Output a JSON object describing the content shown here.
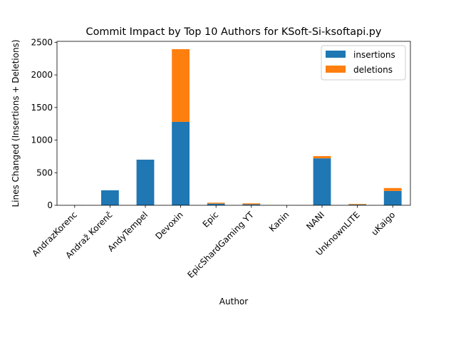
{
  "chart_data": {
    "type": "bar",
    "stacked": true,
    "title": "Commit Impact by Top 10 Authors for KSoft-Si-ksoftapi.py",
    "xlabel": "Author",
    "ylabel": "Lines Changed (Insertions + Deletions)",
    "categories": [
      "AndrazKorenc",
      "Andraž Korenč",
      "AndyTempel",
      "Devoxin",
      "Epic",
      "EpicShardGaming YT",
      "Kanin",
      "NANI",
      "UnknownLITE",
      "uKaigo"
    ],
    "series": [
      {
        "name": "insertions",
        "color": "#1f77b4",
        "values": [
          2,
          230,
          700,
          1280,
          25,
          15,
          0,
          720,
          10,
          220
        ]
      },
      {
        "name": "deletions",
        "color": "#ff7f0e",
        "values": [
          0,
          0,
          0,
          1115,
          15,
          15,
          0,
          35,
          10,
          45
        ]
      }
    ],
    "ylim": [
      0,
      2515
    ],
    "yticks": [
      0,
      500,
      1000,
      1500,
      2000,
      2500
    ],
    "legend": "top-right",
    "grid": false
  }
}
